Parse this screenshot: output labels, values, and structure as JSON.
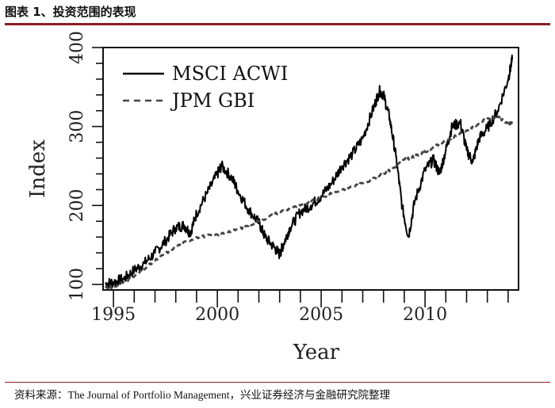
{
  "figure": {
    "title": "图表 1、投资范围的表现",
    "source": "资料来源：The Journal of Portfolio Management，兴业证券经济与金融研究院整理"
  },
  "chart_data": {
    "type": "line",
    "xlabel": "Year",
    "ylabel": "Index",
    "xlim": [
      1994.5,
      2014.5
    ],
    "ylim": [
      93,
      400
    ],
    "x_ticks": [
      1995,
      2000,
      2005,
      2010
    ],
    "y_ticks": [
      100,
      200,
      300,
      400
    ],
    "legend": "top-left",
    "series": [
      {
        "name": "MSCI ACWI",
        "style": "solid",
        "color": "#000000",
        "x": [
          1994.6,
          1995.0,
          1995.5,
          1996.0,
          1996.5,
          1997.0,
          1997.5,
          1998.0,
          1998.4,
          1998.7,
          1999.0,
          1999.5,
          2000.0,
          2000.2,
          2000.7,
          2001.0,
          2001.5,
          2002.0,
          2002.3,
          2002.7,
          2003.0,
          2003.2,
          2003.5,
          2004.0,
          2004.5,
          2005.0,
          2005.5,
          2006.0,
          2006.5,
          2007.0,
          2007.5,
          2007.8,
          2008.0,
          2008.3,
          2008.6,
          2008.9,
          2009.2,
          2009.5,
          2010.0,
          2010.4,
          2010.7,
          2011.0,
          2011.3,
          2011.7,
          2012.0,
          2012.3,
          2012.6,
          2013.0,
          2013.5,
          2014.0,
          2014.2
        ],
        "values": [
          101,
          103,
          107,
          118,
          127,
          140,
          155,
          172,
          175,
          165,
          190,
          215,
          240,
          250,
          235,
          218,
          195,
          178,
          160,
          148,
          138,
          152,
          172,
          192,
          200,
          212,
          228,
          250,
          265,
          285,
          322,
          345,
          340,
          310,
          262,
          198,
          160,
          205,
          245,
          258,
          240,
          270,
          300,
          305,
          270,
          255,
          285,
          298,
          320,
          360,
          385
        ]
      },
      {
        "name": "JPM GBI",
        "style": "dashed",
        "color": "#444444",
        "x": [
          1994.6,
          1995.0,
          1996.0,
          1997.0,
          1998.0,
          1999.0,
          2000.0,
          2001.0,
          2002.0,
          2003.0,
          2004.0,
          2005.0,
          2006.0,
          2007.0,
          2008.0,
          2008.5,
          2009.0,
          2009.5,
          2010.0,
          2011.0,
          2012.0,
          2013.0,
          2013.5,
          2014.0,
          2014.2
        ],
        "values": [
          97,
          96,
          110,
          130,
          148,
          160,
          163,
          170,
          180,
          192,
          200,
          210,
          220,
          228,
          240,
          248,
          258,
          262,
          268,
          282,
          295,
          310,
          312,
          303,
          305
        ]
      }
    ]
  }
}
